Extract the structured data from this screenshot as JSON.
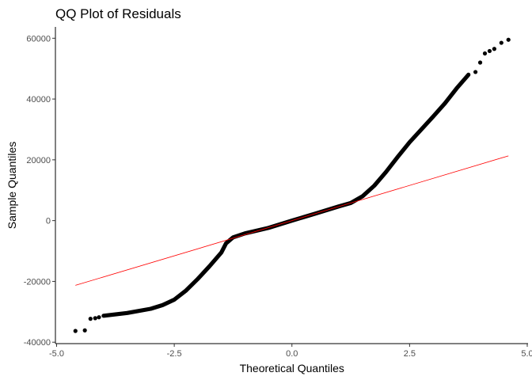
{
  "chart_data": {
    "type": "scatter",
    "title": "QQ Plot of Residuals",
    "xlabel": "Theoretical Quantiles",
    "ylabel": "Sample Quantiles",
    "xlim": [
      -5.0,
      5.0
    ],
    "ylim": [
      -40000,
      60000
    ],
    "x_ticks": [
      -5.0,
      -2.5,
      0.0,
      2.5,
      5.0
    ],
    "x_tick_labels": [
      "-5.0",
      "-2.5",
      "0.0",
      "2.5",
      "5.0"
    ],
    "y_ticks": [
      -40000,
      -20000,
      0,
      20000,
      40000,
      60000
    ],
    "y_tick_labels": [
      "-40000",
      "-20000",
      "0",
      "20000",
      "40000",
      "60000"
    ],
    "grid": false,
    "point_color": "#000000",
    "line_color": "#ff0000",
    "reference_line": {
      "x": [
        -4.6,
        4.6
      ],
      "y": [
        -21300,
        21300
      ]
    },
    "qq_curve": {
      "x": [
        -4.0,
        -3.5,
        -3.0,
        -2.75,
        -2.5,
        -2.25,
        -2.0,
        -1.75,
        -1.5,
        -1.4,
        -1.25,
        -1.0,
        -0.5,
        0.0,
        0.5,
        1.0,
        1.25,
        1.5,
        1.75,
        2.0,
        2.25,
        2.5,
        2.75,
        3.0,
        3.25,
        3.5,
        3.75
      ],
      "y": [
        -31300,
        -30400,
        -29000,
        -27800,
        -26000,
        -23000,
        -19200,
        -15000,
        -10500,
        -7500,
        -5500,
        -4200,
        -2400,
        0,
        2300,
        4700,
        5800,
        8000,
        11500,
        16000,
        21000,
        25800,
        30000,
        34200,
        38600,
        43500,
        48000
      ]
    },
    "points": {
      "x": [
        -4.6,
        -4.4,
        -4.28,
        -4.18,
        -4.1,
        3.9,
        4.0,
        4.1,
        4.2,
        4.3,
        4.45,
        4.6
      ],
      "y": [
        -36300,
        -36100,
        -32300,
        -32100,
        -31800,
        48900,
        52000,
        55000,
        55800,
        56500,
        58500,
        59500
      ]
    }
  }
}
